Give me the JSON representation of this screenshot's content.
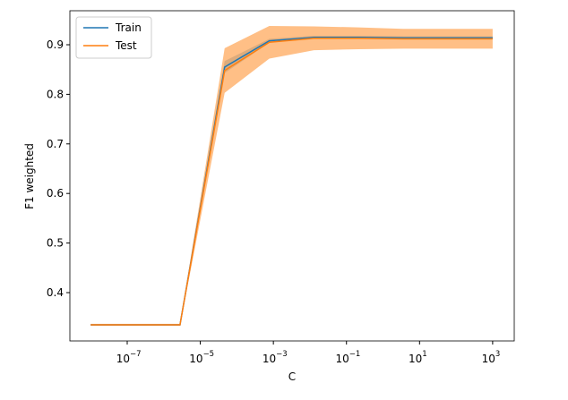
{
  "chart_data": {
    "type": "line",
    "x_label": "C",
    "y_label": "F1 weighted",
    "xscale": "log",
    "legend": "upper left",
    "x": [
      1e-08,
      1.668e-07,
      2.783e-06,
      4.642e-05,
      0.0007743,
      0.01292,
      0.2154,
      3.594,
      59.95,
      1000
    ],
    "series": [
      {
        "name": "Train",
        "color": "#1f77b4",
        "band_opacity": 0.3,
        "values": [
          0.335,
          0.335,
          0.335,
          0.855,
          0.908,
          0.915,
          0.915,
          0.914,
          0.914,
          0.914
        ],
        "std": [
          0.001,
          0.001,
          0.001,
          0.012,
          0.004,
          0.003,
          0.003,
          0.003,
          0.003,
          0.003
        ]
      },
      {
        "name": "Test",
        "color": "#ff7f0e",
        "band_opacity": 0.5,
        "values": [
          0.335,
          0.335,
          0.335,
          0.848,
          0.905,
          0.913,
          0.913,
          0.912,
          0.912,
          0.912
        ],
        "std": [
          0.002,
          0.002,
          0.002,
          0.045,
          0.033,
          0.024,
          0.022,
          0.02,
          0.02,
          0.02
        ]
      }
    ],
    "xlim": [
      2.7e-09,
      3900
    ],
    "ylim": [
      0.3025,
      0.9686
    ],
    "xticks": [
      {
        "value": 1e-07,
        "label": "10",
        "exponent": "−7"
      },
      {
        "value": 1e-05,
        "label": "10",
        "exponent": "−5"
      },
      {
        "value": 0.001,
        "label": "10",
        "exponent": "−3"
      },
      {
        "value": 0.1,
        "label": "10",
        "exponent": "−1"
      },
      {
        "value": 10,
        "label": "10",
        "exponent": "1"
      },
      {
        "value": 1000,
        "label": "10",
        "exponent": "3"
      }
    ],
    "yticks": [
      0.4,
      0.5,
      0.6,
      0.7,
      0.8,
      0.9
    ]
  }
}
